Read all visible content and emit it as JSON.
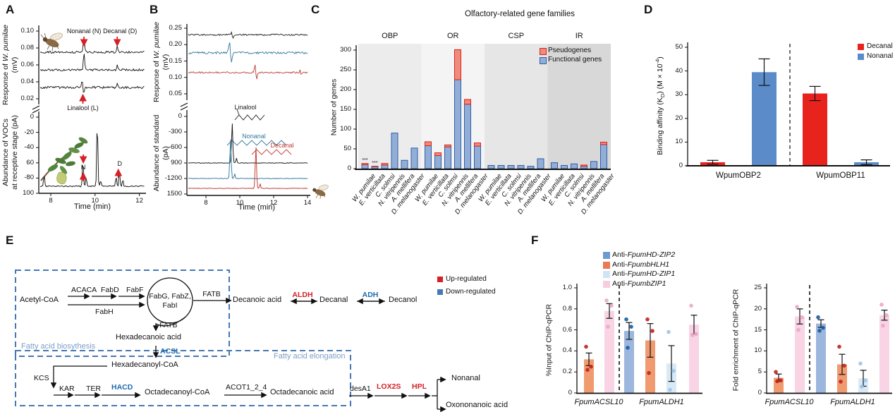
{
  "panels": {
    "A": "A",
    "B": "B",
    "C": "C",
    "D": "D",
    "E": "E",
    "F": "F"
  },
  "panelA": {
    "ylabel_top": {
      "pre": "Response of ",
      "it": "W. pumilae",
      "unit": "(mV)"
    },
    "ylabel_bottom": {
      "l1": "Abundance of VOCs",
      "l2": "at receptive stage (pA)"
    },
    "xlabel": "Time (min)"
  },
  "panelB": {
    "ylabel_top": {
      "pre": "Response of ",
      "it": "W. pumilae",
      "unit": "(mV)"
    },
    "ylabel_bottom": {
      "l1": "Abundance of standard",
      "l2": "(pA)"
    },
    "xlabel": "Time (min)"
  },
  "panelC": {
    "title": "Olfactory-related gene families",
    "ylabel": "Number of genes"
  },
  "panelD": {
    "ylabel": {
      "p1": "Binding affinity (K",
      "sub": "D",
      "p2": ") (M × 10",
      "sup": "-4",
      "p3": ")"
    }
  },
  "panelE": {
    "box1": "Fatty acid biosythesis",
    "box2": "Fatty acid elongation",
    "legend": [
      {
        "label": "Up-regulated",
        "color": "#d42027"
      },
      {
        "label": "Down-regulated",
        "color": "#4678b2"
      }
    ],
    "acetyl": "Acetyl-CoA",
    "acaca": "ACACA",
    "fabd": "FabD",
    "fabf": "FabF",
    "fabh": "FabH",
    "cycle1": "FabG, FabZ,",
    "cycle2": "FabI",
    "fatb1": "FATB",
    "decanoic": "Decanoic acid",
    "aldh": "ALDH",
    "decanal": "Decanal",
    "adh": "ADH",
    "decanol": "Decanol",
    "fatb2": "FATB",
    "hexadecanoic": "Hexadecanoic acid",
    "acsl": "ACSL",
    "hexadecanoyl": "Hexadecanoyl-CoA",
    "kcs": "KCS",
    "kar": "KAR",
    "ter": "TER",
    "hacd": "HACD",
    "octadecanoyl": "Octadecanoyl-CoA",
    "acot": "ACOT1_2_4",
    "octadecanoic": "Octadecanoic acid",
    "desa1": "desA1",
    "lox2s": "LOX2S",
    "hpl": "HPL",
    "nonanal": "Nonanal",
    "oxononanoic": "Oxononanoic acid"
  },
  "panelF": {
    "ylabel_left": "%Input of ChIP-qPCR",
    "ylabel_right": "Fold enrichment of ChIP-qPCR",
    "legend": [
      {
        "label": "Anti-FpumHD-ZIP2",
        "prefix": "Anti-",
        "gene": "FpumHD-ZIP2",
        "square_color": "#6d9bcd",
        "bar_color": "#9cb6dd",
        "dot_color": "#1d5e9e"
      },
      {
        "label": "Anti-FpumbHLH1",
        "prefix": "Anti-",
        "gene": "FpumbHLH1",
        "square_color": "#e97a52",
        "bar_color": "#f09a70",
        "dot_color": "#c22620"
      },
      {
        "label": "Anti-FpumHD-ZIP1",
        "prefix": "Anti-",
        "gene": "FpumHD-ZIP1",
        "square_color": "#cfe5f6",
        "bar_color": "#d9eaf7",
        "dot_color": "#9fc6e6"
      },
      {
        "label": "Anti-FpumbZIP1",
        "prefix": "Anti-",
        "gene": "FpumbZIP1",
        "square_color": "#f6cde0",
        "bar_color": "#f9d4e4",
        "dot_color": "#eba9c9"
      }
    ]
  },
  "chart_data": [
    {
      "id": "gc_ead_receptive",
      "type": "line",
      "xlabel": "Time (min)",
      "xticks": [
        "8",
        "10",
        "12"
      ],
      "xlim_min": [
        7.5,
        12.1
      ],
      "top": {
        "ylabel": "Response of W. pumilae (mV)",
        "yticks": [
          "0.10",
          "0.08",
          "0.06",
          "0.04",
          "0.02"
        ],
        "n_traces": 3,
        "stimuli": [
          {
            "label": "Nonanal (N)",
            "time_min": 9.5
          },
          {
            "label": "Decanal (D)",
            "time_min": 11.0
          },
          {
            "label": "Linalool (L)",
            "time_min": 9.45
          }
        ]
      },
      "bottom": {
        "ylabel": "Abundance of VOCs at receptive stage (pA)",
        "yticks": [
          "0",
          "-20",
          "-40",
          "60",
          "-80",
          "100"
        ],
        "peaks": [
          {
            "time_min": 7.7,
            "rel_height": 16
          },
          {
            "time_min": 9.45,
            "rel_height": 38
          },
          {
            "time_min": 9.6,
            "rel_height": 12
          },
          {
            "time_min": 10.1,
            "rel_height": 95
          },
          {
            "time_min": 10.25,
            "rel_height": 8
          },
          {
            "time_min": 10.95,
            "rel_height": 14
          },
          {
            "time_min": 11.1,
            "rel_height": 20
          },
          {
            "time_min": 11.25,
            "rel_height": 10
          }
        ],
        "peak_labels": [
          {
            "label": "N",
            "time_min": 9.45
          },
          {
            "label": "D",
            "time_min": 11.05
          }
        ]
      }
    },
    {
      "id": "gc_ead_standard",
      "type": "line",
      "xlabel": "Time (min)",
      "xticks": [
        "8",
        "10",
        "12",
        "14"
      ],
      "xlim_min": [
        7.0,
        14.1
      ],
      "top": {
        "ylabel": "Response of W. pumilae (mV)",
        "yticks": [
          "0.25",
          "0.20",
          "0.15",
          "0.10",
          "0.05"
        ],
        "traces": [
          {
            "compound": "Linalool",
            "color": "#1a1a1a",
            "baseline_mV": 0.23,
            "response_time_min": 9.55
          },
          {
            "compound": "Nonanal",
            "color": "#33789e",
            "baseline_mV": 0.175,
            "response_time_min": 9.45
          },
          {
            "compound": "Decanal",
            "color": "#bf3a32",
            "baseline_mV": 0.115,
            "response_time_min": 10.95
          }
        ]
      },
      "bottom": {
        "ylabel": "Abundance of standard (pA)",
        "yticks": [
          "0",
          "-300",
          "-600",
          "900",
          "-1200",
          "1500"
        ],
        "traces": [
          {
            "compound": "Linalool",
            "color": "#1a1a1a",
            "peak_time_min": 9.55
          },
          {
            "compound": "Nonanal",
            "color": "#33789e",
            "peak_time_min": 9.45
          },
          {
            "compound": "Decanal",
            "color": "#bf3a32",
            "peak_time_min": 10.95
          }
        ]
      }
    },
    {
      "id": "gene_families",
      "type": "bar-stacked-grouped",
      "title": "Olfactory-related gene families",
      "ylabel": "Number of genes",
      "ylim": [
        0,
        300
      ],
      "yticks": [
        0,
        50,
        100,
        150,
        200,
        250,
        300
      ],
      "groups": [
        "OBP",
        "OR",
        "CSP",
        "IR"
      ],
      "band_colors": [
        "#ececec",
        "#f4f4f4",
        "#e6e6e6",
        "#d8d8d8"
      ],
      "species": [
        "W. pumilae",
        "E. verticillata",
        "C. solmsi",
        "N. vitripennis",
        "A. mellifera",
        "D. melanogaster"
      ],
      "legend": [
        {
          "label": "Pseudogenes",
          "fill": "#f08a7a",
          "border": "#d6221f"
        },
        {
          "label": "Functional genes",
          "fill": "#93aed6",
          "border": "#2f5fa8"
        }
      ],
      "functional": {
        "OBP": [
          10,
          5,
          9,
          90,
          21,
          52
        ],
        "OR": [
          58,
          33,
          55,
          225,
          163,
          57
        ],
        "CSP": [
          8,
          8,
          8,
          8,
          6,
          25
        ],
        "IR": [
          15,
          8,
          12,
          6,
          18,
          61
        ]
      },
      "pseudogenes": {
        "OBP": [
          3,
          1,
          4,
          0,
          0,
          0
        ],
        "OR": [
          10,
          7,
          5,
          76,
          12,
          8
        ],
        "CSP": [
          0,
          0,
          0,
          0,
          0,
          0
        ],
        "IR": [
          0,
          0,
          0,
          3,
          0,
          6
        ]
      },
      "sig": [
        {
          "group": 0,
          "bar": 0,
          "text": "***"
        },
        {
          "group": 0,
          "bar": 1,
          "text": "***"
        }
      ]
    },
    {
      "id": "binding_affinity",
      "type": "bar",
      "ylabel": "Binding affinity (KD) (M × 10-4)",
      "ylim": [
        0,
        50
      ],
      "yticks": [
        0,
        10,
        20,
        30,
        40,
        50
      ],
      "groups": [
        "WpumOBP2",
        "WpumOBP11"
      ],
      "series": [
        {
          "name": "Decanal",
          "color": "#e8231e",
          "values": [
            1.5,
            30.5
          ],
          "errors": [
            0.8,
            3.0
          ]
        },
        {
          "name": "Nonanal",
          "color": "#5b8bc9",
          "values": [
            39.5,
            1.5
          ],
          "errors": [
            5.6,
            1.0
          ]
        }
      ]
    },
    {
      "id": "chip_input",
      "type": "bar",
      "ylabel": "%Input of ChIP-qPCR",
      "ylim": [
        0,
        1.0
      ],
      "yticks": [
        "0",
        "0.2",
        "0.4",
        "0.6",
        "0.8",
        "1.0"
      ],
      "groups": [
        {
          "label": "FpumACSL10",
          "bars": [
            {
              "antibody": "Anti-FpumbHLH1",
              "value": 0.32,
              "error": 0.06,
              "dots": [
                0.44,
                0.25,
                0.22
              ]
            },
            {
              "antibody": "Anti-FpumbZIP1",
              "value": 0.78,
              "error": 0.07,
              "dots": [
                0.88,
                0.83,
                0.63
              ]
            }
          ]
        },
        {
          "label": "FpumALDH1",
          "bars": [
            {
              "antibody": "Anti-FpumHD-ZIP2",
              "value": 0.59,
              "error": 0.08,
              "dots": [
                0.7,
                0.63,
                0.43
              ]
            },
            {
              "antibody": "Anti-FpumbHLH1",
              "value": 0.5,
              "error": 0.16,
              "dots": [
                0.7,
                0.59,
                0.19
              ]
            },
            {
              "antibody": "Anti-FpumHD-ZIP1",
              "value": 0.28,
              "error": 0.17,
              "dots": [
                0.58,
                0.21,
                0.03
              ]
            },
            {
              "antibody": "Anti-FpumbZIP1",
              "value": 0.65,
              "error": 0.09,
              "dots": [
                0.83,
                0.56,
                0.55
              ]
            }
          ]
        }
      ]
    },
    {
      "id": "chip_fold",
      "type": "bar",
      "ylabel": "Fold enrichment of ChIP-qPCR",
      "ylim": [
        0,
        25
      ],
      "yticks": [
        "0",
        "5",
        "10",
        "15",
        "20",
        "25"
      ],
      "groups": [
        {
          "label": "FpumACSL10",
          "bars": [
            {
              "antibody": "Anti-FpumbHLH1",
              "value": 3.6,
              "error": 0.9,
              "dots": [
                5.0,
                3.0,
                2.8
              ]
            },
            {
              "antibody": "Anti-FpumbZIP1",
              "value": 18.2,
              "error": 1.8,
              "dots": [
                20.5,
                18.0,
                15.0
              ]
            }
          ]
        },
        {
          "label": "FpumALDH1",
          "bars": [
            {
              "antibody": "Anti-FpumHD-ZIP2",
              "value": 16.5,
              "error": 0.9,
              "dots": [
                18.0,
                15.5,
                14.8
              ]
            },
            {
              "antibody": "Anti-FpumbHLH1",
              "value": 6.8,
              "error": 2.4,
              "dots": [
                11.0,
                6.5,
                2.7
              ]
            },
            {
              "antibody": "Anti-FpumHD-ZIP1",
              "value": 3.5,
              "error": 1.9,
              "dots": [
                7.0,
                3.0,
                1.5
              ]
            },
            {
              "antibody": "Anti-FpumbZIP1",
              "value": 18.5,
              "error": 1.2,
              "dots": [
                21.0,
                18.5,
                16.0
              ]
            }
          ]
        }
      ]
    }
  ]
}
